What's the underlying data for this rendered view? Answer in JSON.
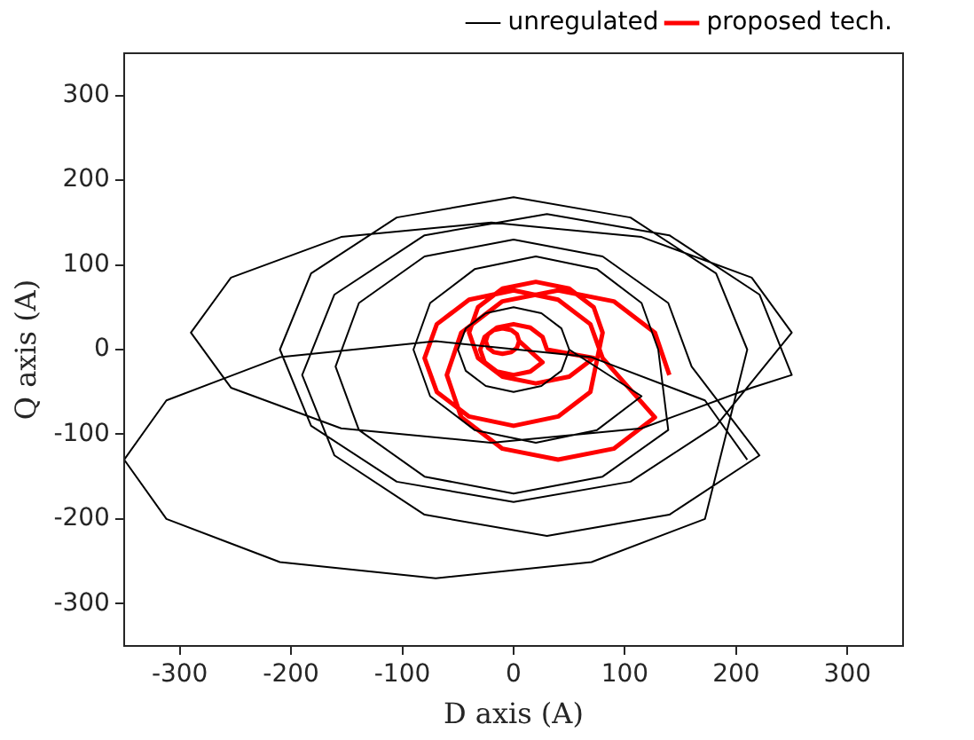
{
  "chart_data": {
    "type": "line",
    "xlabel": "D axis (A)",
    "ylabel": "Q axis (A)",
    "xlim": [
      -350,
      350
    ],
    "ylim": [
      -350,
      350
    ],
    "xticks": [
      -300,
      -200,
      -100,
      0,
      100,
      200,
      300
    ],
    "yticks": [
      -300,
      -200,
      -100,
      0,
      100,
      200,
      300
    ],
    "grid": false,
    "legend": "top right",
    "marker": "none",
    "line_style": "solid",
    "series": [
      {
        "name": "unregulated",
        "color": "#000000",
        "x": [
          210,
          172,
          70,
          -70,
          -210,
          -312,
          -350,
          -312,
          -210,
          -70,
          70,
          172,
          210,
          182,
          105,
          0,
          -105,
          -182,
          -210,
          -182,
          -105,
          0,
          105,
          182,
          250,
          214,
          115,
          -20,
          -155,
          -254,
          -290,
          -254,
          -155,
          -20,
          115,
          214,
          250,
          221,
          140,
          30,
          -80,
          -161,
          -190,
          -161,
          -80,
          30,
          140,
          221,
          160,
          139,
          80,
          0,
          -80,
          -139,
          -160,
          -139,
          -80,
          0,
          80,
          139,
          130,
          115,
          75,
          20,
          -35,
          -75,
          -90,
          -75,
          -35,
          20,
          75,
          115,
          50,
          43,
          25,
          0,
          -25,
          -43,
          -50,
          -43,
          -25,
          0,
          25,
          43,
          50
        ],
        "values": [
          -130,
          -60,
          -9,
          10,
          -9,
          -60,
          -130,
          -200,
          -251,
          -270,
          -251,
          -200,
          0,
          90,
          156,
          180,
          156,
          90,
          0,
          -90,
          -156,
          -180,
          -156,
          -90,
          20,
          85,
          133,
          150,
          133,
          85,
          20,
          -45,
          -93,
          -110,
          -93,
          -45,
          -30,
          65,
          135,
          160,
          135,
          65,
          -30,
          -125,
          -195,
          -220,
          -195,
          -125,
          -20,
          55,
          110,
          130,
          110,
          55,
          -20,
          -95,
          -150,
          -170,
          -150,
          -95,
          0,
          55,
          95,
          110,
          95,
          55,
          0,
          -55,
          -95,
          -110,
          -95,
          -55,
          0,
          25,
          43,
          50,
          43,
          25,
          0,
          -25,
          -43,
          -50,
          -43,
          -25,
          0
        ]
      },
      {
        "name": "proposed tech.",
        "color": "#ff0000",
        "x": [
          140,
          127,
          90,
          40,
          -10,
          -47,
          -60,
          -47,
          -10,
          40,
          90,
          127,
          80,
          69,
          40,
          0,
          -40,
          -69,
          -80,
          -69,
          -40,
          0,
          40,
          69,
          80,
          72,
          50,
          20,
          -10,
          -32,
          -40,
          -32,
          -10,
          20,
          50,
          72,
          30,
          26,
          15,
          0,
          -15,
          -26,
          -30,
          -26,
          -15,
          0,
          15,
          26,
          5,
          3,
          -2,
          -10,
          -18,
          -23,
          -25,
          -23,
          -18,
          -10,
          -2,
          3,
          5
        ],
        "values": [
          -30,
          20,
          57,
          70,
          57,
          20,
          -30,
          -80,
          -117,
          -130,
          -117,
          -80,
          -10,
          30,
          59,
          70,
          59,
          30,
          -10,
          -50,
          -79,
          -90,
          -79,
          -50,
          20,
          50,
          72,
          80,
          72,
          50,
          20,
          -10,
          -32,
          -40,
          -32,
          -10,
          0,
          15,
          26,
          30,
          26,
          15,
          0,
          -15,
          -26,
          -30,
          -26,
          -15,
          10,
          18,
          23,
          25,
          23,
          18,
          10,
          2,
          -3,
          -5,
          -3,
          2,
          10
        ]
      }
    ]
  }
}
